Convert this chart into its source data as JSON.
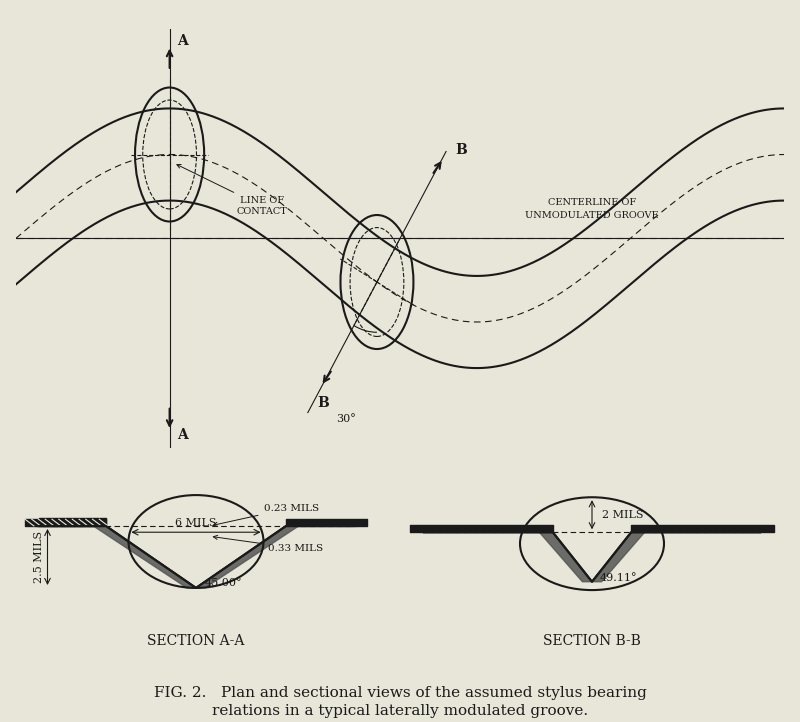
{
  "bg_color": "#e8e6d8",
  "line_color": "#1a1a1a",
  "title_line1": "FIG. 2.   Plan and sectional views of the assumed stylus bearing",
  "title_line2": "relations in a typical laterally modulated groove.",
  "section_aa_label": "SECTION A-A",
  "section_bb_label": "SECTION B-B",
  "label_line_of_contact": "LINE OF\nCONTACT",
  "label_centerline": "CENTERLINE OF\nUNMODULATED GROOVE",
  "label_6mils": "6 MILS",
  "label_2mils": "2 MILS",
  "label_25mils": "2.5 MILS",
  "label_023mils": "0.23 MILS",
  "label_033mils": "0.33 MILS",
  "label_45deg": "45.00°",
  "label_4911deg": "49.11°",
  "label_30deg": "30°",
  "label_A": "A",
  "label_B": "B"
}
